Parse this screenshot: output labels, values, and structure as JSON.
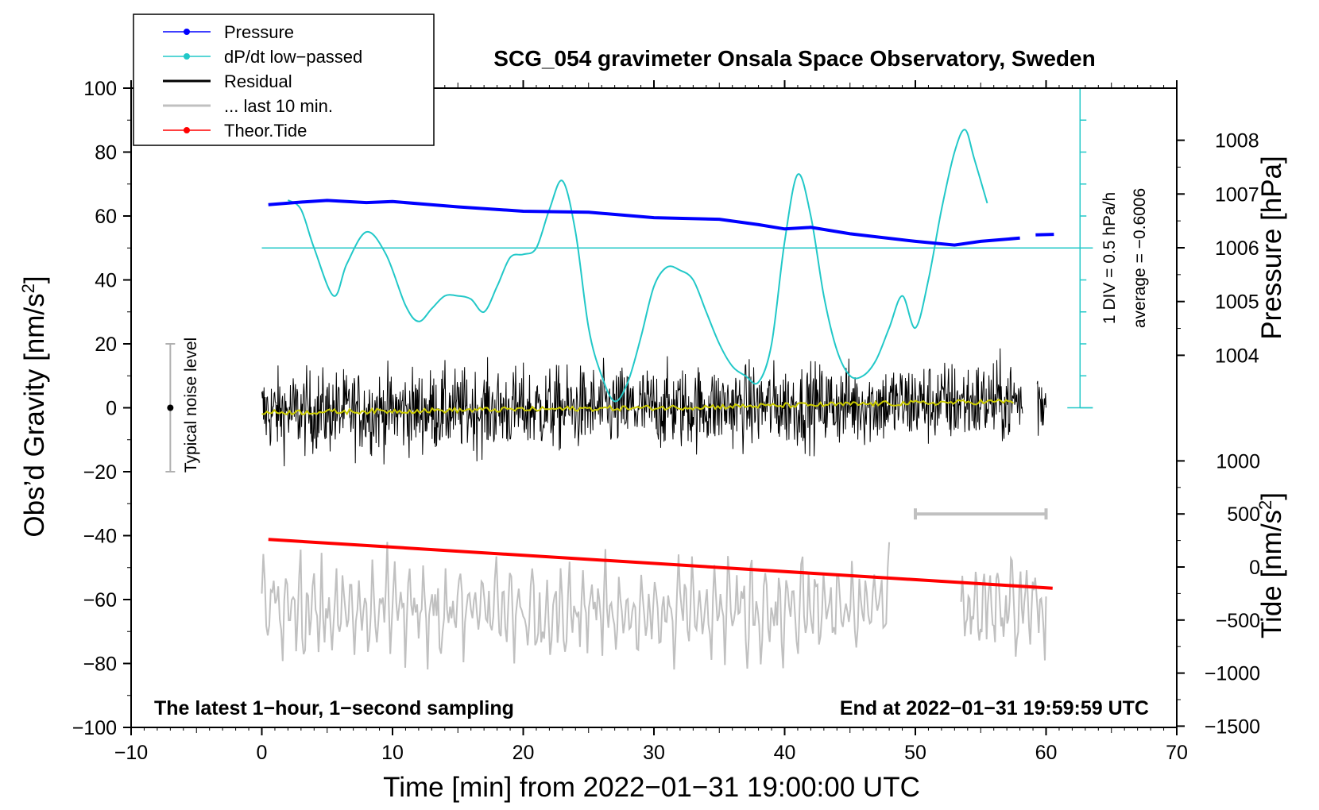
{
  "chart_data": {
    "type": "line",
    "title": "SCG_054 gravimeter Onsala Space Observatory, Sweden",
    "xlabel": "Time [min] from 2022−01−31 19:00:00 UTC",
    "ylabel_prefix": "Obs’d Gravity [nm/s",
    "ylabel_suffix": "]",
    "y2label": "Pressure [hPa]",
    "y3label_prefix": "Tide [nm/s",
    "y3label_suffix": "]",
    "superscript": "2",
    "xlim": [
      -10,
      70
    ],
    "ylim": [
      -100,
      100
    ],
    "x_ticks": [
      "−10",
      "0",
      "10",
      "20",
      "30",
      "40",
      "50",
      "60",
      "70"
    ],
    "y_ticks": [
      "−100",
      "−80",
      "−60",
      "−40",
      "−20",
      "0",
      "20",
      "40",
      "60",
      "80",
      "100"
    ],
    "pressure_ticks": [
      "1004",
      "1005",
      "1006",
      "1007",
      "1008"
    ],
    "tide_ticks": [
      "−1500",
      "−1000",
      "−500",
      "0",
      "500",
      "1000"
    ],
    "legend": [
      {
        "label": "Pressure",
        "color": "#0000ff",
        "marker": true
      },
      {
        "label": "dP/dt low−passed",
        "color": "#22c8c8",
        "marker": true
      },
      {
        "label": "Residual",
        "color": "#000000",
        "marker": false
      },
      {
        "label": "... last 10 min.",
        "color": "#c0c0c0",
        "marker": false
      },
      {
        "label": "Theor.Tide",
        "color": "#ff0000",
        "marker": true
      }
    ],
    "annotations": {
      "noise": "Typical noise level",
      "scale": "1 DIV = 0.5 hPa/h",
      "average": "average = −0.6006",
      "bottom_left": "The latest 1−hour, 1−second sampling",
      "bottom_right": "End at 2022−01−31 19:59:59 UTC"
    },
    "series": [
      {
        "name": "Pressure",
        "units": "hPa",
        "color": "#0000ff",
        "x": [
          0.5,
          3,
          5,
          8,
          10,
          15,
          20,
          25,
          30,
          35,
          38,
          40,
          42,
          45,
          50,
          53,
          55,
          58
        ],
        "values": [
          1006.8,
          1006.85,
          1006.88,
          1006.84,
          1006.86,
          1006.76,
          1006.68,
          1006.66,
          1006.56,
          1006.53,
          1006.43,
          1006.35,
          1006.38,
          1006.26,
          1006.12,
          1006.05,
          1006.12,
          1006.18
        ],
        "tail_x": [
          59.2,
          60.6
        ],
        "tail_values": [
          1006.24,
          1006.25
        ]
      },
      {
        "name": "dP/dt low-passed",
        "units": "y-axis units (1 DIV = 0.5 hPa/h)",
        "color": "#22c8c8",
        "x": [
          2,
          3,
          4,
          5.5,
          6.5,
          8,
          9.5,
          11,
          12,
          13,
          14,
          15,
          16,
          17,
          18,
          19,
          20,
          21,
          22,
          23,
          24,
          25,
          26,
          27,
          28,
          29,
          30,
          31,
          32,
          33,
          34,
          35,
          36,
          37,
          38,
          39,
          40,
          41,
          42,
          43,
          44,
          45,
          46,
          47,
          48,
          49,
          50,
          51,
          52,
          53,
          53.8,
          54.5,
          55.5
        ],
        "values": [
          65,
          62,
          50,
          35,
          45,
          55,
          48,
          32,
          27,
          31,
          35,
          35,
          34,
          30,
          38,
          47,
          48,
          50,
          62,
          71,
          55,
          25,
          10,
          2,
          8,
          22,
          38,
          44,
          43,
          40,
          30,
          20,
          13,
          10,
          8,
          20,
          52,
          73,
          60,
          35,
          18,
          10,
          10,
          15,
          25,
          35,
          25,
          40,
          62,
          80,
          87,
          78,
          64
        ]
      },
      {
        "name": "Residual",
        "units": "nm/s²",
        "color": "#000000",
        "x_range": [
          0,
          60
        ],
        "typical_amplitude": 15,
        "peak_range": [
          -27,
          28
        ],
        "mean_trend": {
          "x": [
            0,
            30,
            57.5
          ],
          "values": [
            -1.5,
            0,
            2
          ]
        },
        "gap": [
          58.2,
          59.3
        ]
      },
      {
        "name": "... last 10 min.",
        "units": "nm/s² (offset, stretched)",
        "color": "#c0c0c0",
        "x_range": [
          0,
          48
        ],
        "tail_x_range": [
          53.5,
          60
        ],
        "center": -63,
        "peak_range": [
          -91,
          -41
        ]
      },
      {
        "name": "Theor.Tide",
        "units": "nm/s²",
        "color": "#ff0000",
        "x": [
          0.5,
          60.5
        ],
        "values": [
          260,
          -200
        ]
      }
    ],
    "noise_bar": {
      "x": -7,
      "center": 0,
      "range": [
        -20,
        20
      ]
    },
    "time_scale_bar": {
      "x_range": [
        50,
        60
      ],
      "tide_level": 500
    }
  }
}
